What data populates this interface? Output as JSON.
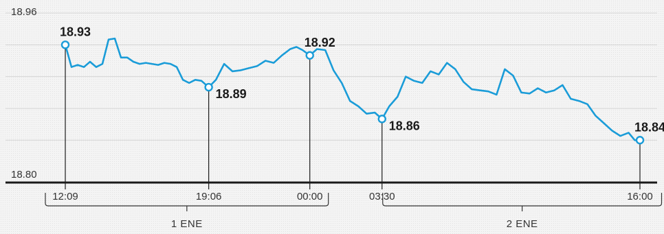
{
  "chart_data": {
    "type": "line",
    "ylim": [
      18.8,
      18.96
    ],
    "ytick_labels": [
      "18.96",
      "18.80"
    ],
    "gridlines": [
      18.96,
      18.93,
      18.9,
      18.87,
      18.84
    ],
    "grid": true,
    "color": "#1a9cd8",
    "x_ticks": [
      {
        "label": "12:09",
        "t": 0.0
      },
      {
        "label": "19:06",
        "t": 6.95
      },
      {
        "label": "00:00",
        "t": 11.85
      },
      {
        "label": "03:30",
        "t": 15.35
      },
      {
        "label": "16:00",
        "t": 27.85
      }
    ],
    "days": [
      {
        "label": "1 ENE",
        "start_t": -1.0,
        "end_t": 11.85
      },
      {
        "label": "2 ENE",
        "start_t": 15.35,
        "end_t": 28.0
      }
    ],
    "callouts": [
      {
        "t": 0.0,
        "value": 18.93,
        "label": "18.93",
        "label_pos": "above"
      },
      {
        "t": 6.95,
        "value": 18.89,
        "label": "18.89",
        "label_pos": "right"
      },
      {
        "t": 11.85,
        "value": 18.92,
        "label": "18.92",
        "label_pos": "above"
      },
      {
        "t": 15.35,
        "value": 18.86,
        "label": "18.86",
        "label_pos": "right"
      },
      {
        "t": 27.85,
        "value": 18.84,
        "label": "18.84",
        "label_pos": "above"
      }
    ],
    "series": [
      {
        "t": [
          0.0,
          0.3,
          0.6,
          0.9,
          1.2,
          1.5,
          1.8,
          2.1,
          2.4,
          2.7,
          3.0,
          3.3,
          3.6,
          3.9,
          4.2,
          4.5,
          4.8,
          5.1,
          5.4,
          5.7,
          6.0,
          6.3,
          6.6,
          6.95,
          7.3,
          7.7,
          8.1,
          8.5,
          8.9,
          9.3,
          9.7,
          10.1,
          10.5,
          10.9,
          11.2,
          11.5,
          11.85,
          12.2,
          12.6,
          13.0,
          13.4,
          13.8,
          14.2,
          14.6,
          15.0,
          15.35,
          15.7,
          16.1,
          16.5,
          16.9,
          17.3,
          17.7,
          18.1,
          18.5,
          18.9,
          19.3,
          19.7,
          20.1,
          20.5,
          20.9,
          21.3,
          21.7,
          22.1,
          22.5,
          22.9,
          23.3,
          23.7,
          24.1,
          24.5,
          24.9,
          25.3,
          25.7,
          26.1,
          26.5,
          26.9,
          27.3,
          27.6,
          27.85
        ],
        "values": [
          18.93,
          18.909,
          18.911,
          18.909,
          18.914,
          18.909,
          18.912,
          18.935,
          18.936,
          18.918,
          18.918,
          18.914,
          18.912,
          18.913,
          18.912,
          18.911,
          18.913,
          18.912,
          18.909,
          18.897,
          18.894,
          18.897,
          18.896,
          18.89,
          18.897,
          18.912,
          18.905,
          18.906,
          18.908,
          18.91,
          18.915,
          18.913,
          18.92,
          18.926,
          18.928,
          18.925,
          18.92,
          18.926,
          18.925,
          18.906,
          18.894,
          18.877,
          18.872,
          18.865,
          18.866,
          18.86,
          18.872,
          18.881,
          18.9,
          18.896,
          18.894,
          18.905,
          18.902,
          18.913,
          18.907,
          18.895,
          18.888,
          18.887,
          18.886,
          18.883,
          18.907,
          18.901,
          18.885,
          18.884,
          18.889,
          18.885,
          18.887,
          18.892,
          18.879,
          18.877,
          18.874,
          18.863,
          18.856,
          18.849,
          18.844,
          18.847,
          18.84,
          18.84
        ]
      }
    ]
  }
}
